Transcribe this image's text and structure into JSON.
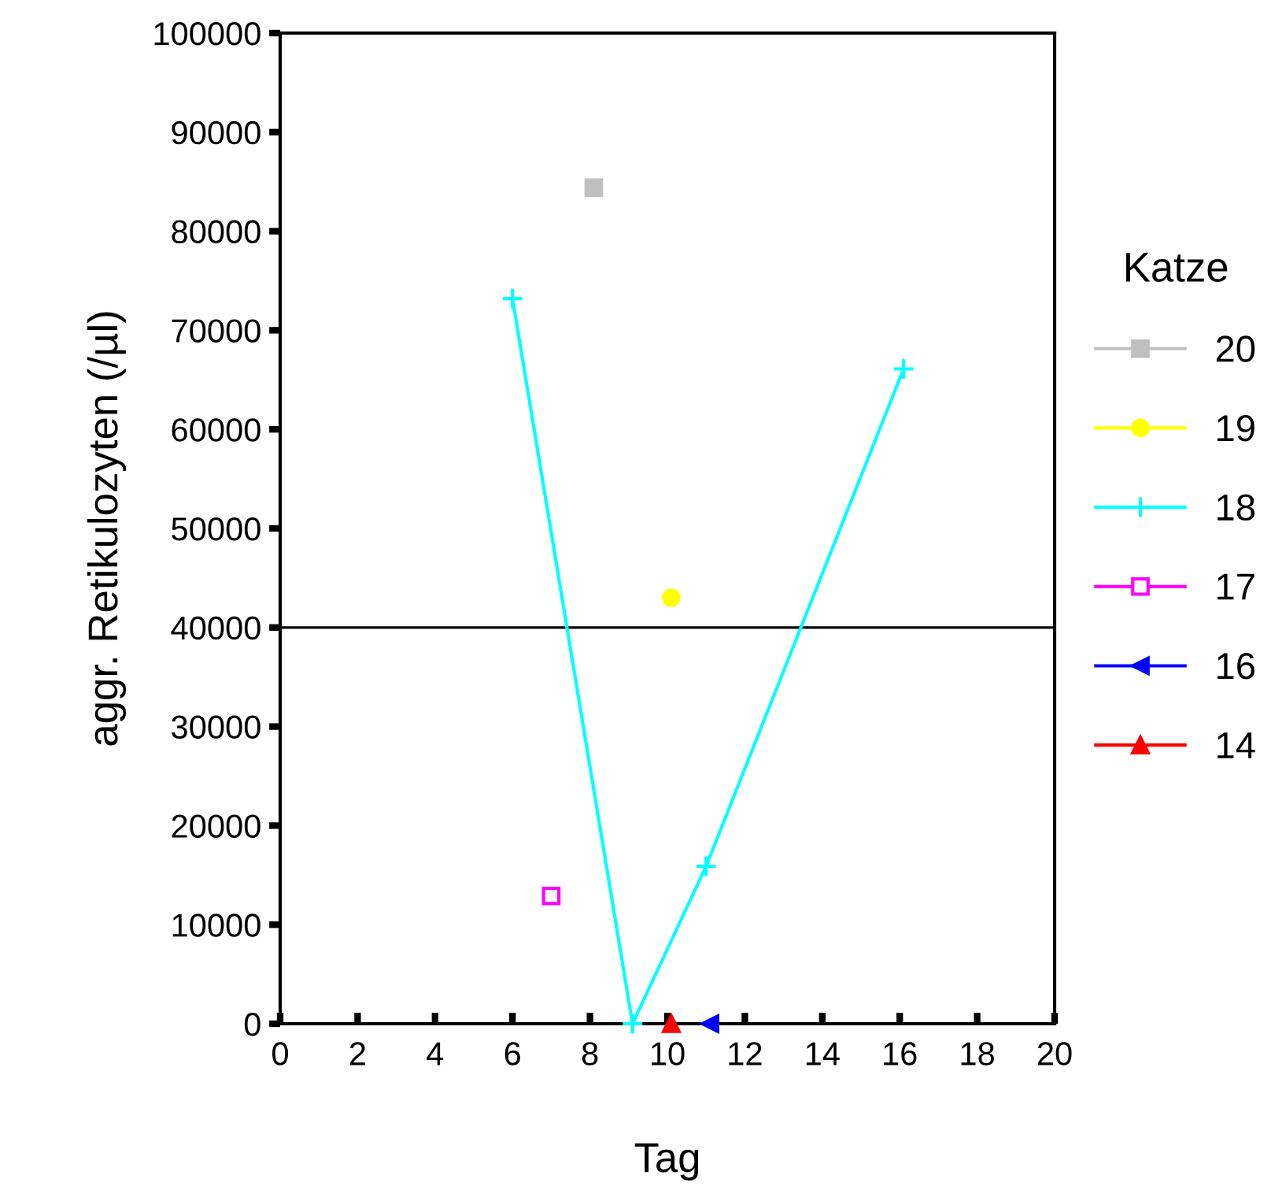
{
  "chart_data": {
    "type": "line",
    "xlabel": "Tag",
    "ylabel": "aggr. Retikulozyten (/µl)",
    "legend_title": "Katze",
    "legend": "right",
    "grid": false,
    "xlim": [
      0,
      20
    ],
    "xticks": [
      0,
      2,
      4,
      6,
      8,
      10,
      12,
      14,
      16,
      18,
      20
    ],
    "ylim": [
      0,
      100000
    ],
    "yticks": [
      0,
      10000,
      20000,
      30000,
      40000,
      50000,
      60000,
      70000,
      80000,
      90000,
      100000
    ],
    "ref_lines": [
      {
        "axis": "y",
        "value": 40000,
        "color": "#000000"
      }
    ],
    "series": [
      {
        "name": "20",
        "color": "#bfbfbf",
        "marker": "square",
        "x": [
          8.1
        ],
        "values": [
          84400
        ]
      },
      {
        "name": "19",
        "color": "#ffff00",
        "marker": "circle",
        "x": [
          10.1
        ],
        "values": [
          43000
        ]
      },
      {
        "name": "18",
        "color": "#00ffff",
        "marker": "cross",
        "x": [
          6,
          9.1,
          11,
          16.1
        ],
        "values": [
          73200,
          0,
          15900,
          66100
        ]
      },
      {
        "name": "17",
        "color": "#ff00ff",
        "marker": "square_open",
        "x": [
          7
        ],
        "values": [
          12900
        ]
      },
      {
        "name": "16",
        "color": "#0000ff",
        "marker": "triangle_left",
        "x": [
          11.1
        ],
        "values": [
          0
        ]
      },
      {
        "name": "14",
        "color": "#ff0000",
        "marker": "triangle",
        "x": [
          10.1
        ],
        "values": [
          0
        ]
      }
    ]
  }
}
